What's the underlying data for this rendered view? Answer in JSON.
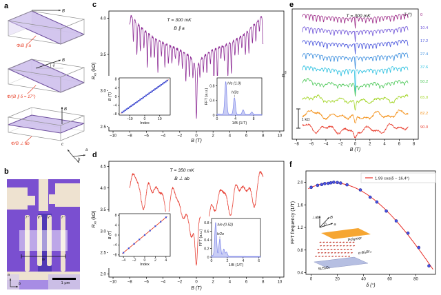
{
  "panels": {
    "a": "a",
    "b": "b",
    "c": "c",
    "d": "d",
    "e": "e",
    "f": "f"
  },
  "panel_a": {
    "label_color": "#e8432b",
    "schematics": [
      {
        "flux_label": "Φ/B ∥ a",
        "field_label": "B",
        "orientation": "parallel-a"
      },
      {
        "flux_label": "Φ/(B ∥ δ = 17°)",
        "field_label": "B",
        "angle_label": "δ",
        "orientation": "tilted-17"
      },
      {
        "flux_label": "Φ/B ⊥ ab",
        "field_label": "B",
        "orientation": "perp-ab"
      }
    ],
    "axes_legend": {
      "up": "c",
      "right": "a",
      "down": "b"
    }
  },
  "panel_b": {
    "type": "device micrograph",
    "electrode_labels": [
      "I⁺",
      "V⁺",
      "V⁻",
      "I⁻"
    ],
    "width_label": "w",
    "scale_label": "1 μm",
    "axes_legend": {
      "up": "a",
      "right": "b"
    },
    "colors": {
      "background": "#7a4fd0",
      "background_light": "#a78ce4",
      "electrode": "#eee2d0",
      "channel": "#342ba4"
    }
  },
  "chart_data": [
    {
      "id": "c",
      "type": "line",
      "annotations": [
        "T = 300 mK",
        "B ∥ a"
      ],
      "xlabel": "B (T)",
      "ylabel_parts": [
        "R",
        "xx",
        " (kΩ)"
      ],
      "xlim": [
        -10.5,
        10.5
      ],
      "ylim": [
        2.44,
        4.1
      ],
      "xticks": [
        -10,
        -8,
        -6,
        -4,
        -2,
        0,
        2,
        4,
        6,
        8,
        10
      ],
      "yticks": [
        2.5,
        3.0,
        3.5,
        4.0
      ],
      "color": "#8e2d96",
      "trace": {
        "range": [
          -8,
          8
        ],
        "base": 3.58,
        "edge": 0.48,
        "pow": 2.6,
        "sag": 0.12,
        "sag_w": 1.8,
        "comb": {
          "period": 0.42,
          "depth": 0.3,
          "width": 0.07
        },
        "dip0": {
          "d": 0.72,
          "w": 0.1,
          "d2": 0.12,
          "w2": 0.5
        },
        "noise": 0.035,
        "seed": 7
      },
      "insets": {
        "index": {
          "xlabel": "Index",
          "ylabel": "B (T)",
          "xlim": [
            -17,
            17
          ],
          "ylim": [
            -8.6,
            8.6
          ],
          "xticks": [
            -10,
            0,
            10
          ],
          "yticks": [
            -8,
            -4,
            0,
            4,
            8
          ],
          "slope": 0.49,
          "index_range": [
            -15,
            15
          ],
          "point_color": "#3d4fd8",
          "line_color": "#e8432b"
        },
        "fft": {
          "xlabel": "1/B (1/T)",
          "ylabel": "FFT (a.u.)",
          "xlim": [
            0,
            9.8
          ],
          "ylim": [
            0,
            1.02
          ],
          "xticks": [
            0,
            4,
            8
          ],
          "yticks": [
            0,
            0.4,
            0.8
          ],
          "peaks": [
            {
              "x": 1.9,
              "h": 0.9,
              "label": "h/e (1.9)"
            },
            {
              "x": 3.8,
              "h": 0.46,
              "label": "h/2e"
            },
            {
              "x": 5.7,
              "h": 0.13
            },
            {
              "x": 7.6,
              "h": 0.07
            }
          ],
          "width": 0.3,
          "fill": "#c9cdf5",
          "line": "#7b84e8"
        }
      }
    },
    {
      "id": "d",
      "type": "line",
      "annotations": [
        "T = 350 mK",
        "B ⊥ ab"
      ],
      "xlabel": "B (T)",
      "ylabel_parts": [
        "R",
        "xx",
        " (kΩ)"
      ],
      "xlim": [
        -10.5,
        10.5
      ],
      "ylim": [
        1.93,
        4.62
      ],
      "xticks": [
        -10,
        -8,
        -6,
        -4,
        -2,
        0,
        2,
        4,
        6,
        8,
        10
      ],
      "yticks": [
        2.0,
        2.5,
        3.0,
        3.5,
        4.0,
        4.5
      ],
      "color": "#e8453a",
      "trace": {
        "range": [
          -8,
          8
        ],
        "base": 3.74,
        "edge": 0.33,
        "pow": 2,
        "sag": 0.5,
        "sag_w": 2.2,
        "slow": [
          [
            0.21,
            2.6,
            1.1
          ],
          [
            0.16,
            1.5,
            0.5
          ],
          [
            0.1,
            0.95,
            2.4
          ]
        ],
        "dip0": {
          "d": 1.15,
          "w": 0.22,
          "d2": 0.2,
          "w2": 0.7
        },
        "noise": 0.05,
        "seed": 21
      },
      "insets": {
        "index": {
          "xlabel": "Index",
          "ylabel": "B (T)",
          "xlim": [
            -4.8,
            4.8
          ],
          "ylim": [
            -8.6,
            8.6
          ],
          "xticks": [
            -4,
            -2,
            0,
            2,
            4
          ],
          "yticks": [
            -8,
            -4,
            0,
            4,
            8
          ],
          "slope": 1.78,
          "index_range": [
            -4,
            4
          ],
          "point_color": "#3d4fd8",
          "line_color": "#e8432b"
        },
        "fft": {
          "xlabel": "1/B (1/T)",
          "ylabel": "FFT (a.u.)",
          "xlim": [
            0,
            6.2
          ],
          "ylim": [
            0,
            0.9
          ],
          "xticks": [
            0,
            2,
            4,
            6
          ],
          "yticks": [
            0,
            0.2,
            0.4,
            0.6,
            0.8
          ],
          "peaks": [
            {
              "x": 0.52,
              "h": 0.78,
              "label": "h/e (0.52)"
            },
            {
              "x": 1.05,
              "h": 0.4,
              "label": "h/2e"
            },
            {
              "x": 1.55,
              "h": 0.17
            },
            {
              "x": 1.9,
              "h": 0.1
            }
          ],
          "width": 0.16,
          "fill": "#c9cdf5",
          "line": "#7b84e8"
        }
      }
    },
    {
      "id": "e",
      "type": "line-stack",
      "annotation": "T = 300 mK",
      "series_header": "δ (°)",
      "xlabel": "B (T)",
      "ylabel_parts": [
        "R",
        "xx",
        ""
      ],
      "xlim": [
        -8.6,
        8.6
      ],
      "xticks": [
        -8,
        -6,
        -4,
        -2,
        0,
        2,
        4,
        6,
        8
      ],
      "scale_bar_label": "1 kΩ",
      "series": [
        {
          "delta": "0",
          "color": "#9b2585",
          "jag": 1.0,
          "slow": 0.12,
          "zdip": 16,
          "zw": 0.06,
          "seed": 31
        },
        {
          "delta": "10.4",
          "color": "#6f54d8",
          "jag": 0.95,
          "slow": 0.15,
          "zdip": 15,
          "zw": 0.06,
          "seed": 32
        },
        {
          "delta": "17.2",
          "color": "#4652dc",
          "jag": 0.9,
          "slow": 0.18,
          "zdip": 15,
          "zw": 0.06,
          "seed": 33
        },
        {
          "delta": "27.4",
          "color": "#3a8dde",
          "jag": 0.85,
          "slow": 0.22,
          "zdip": 18,
          "zw": 0.06,
          "seed": 34
        },
        {
          "delta": "37.6",
          "color": "#2bc0e0",
          "jag": 0.8,
          "slow": 0.28,
          "zdip": 34,
          "zw": 0.06,
          "seed": 35
        },
        {
          "delta": "50.2",
          "color": "#53ca5e",
          "jag": 0.5,
          "slow": 0.5,
          "zdip": 16,
          "zw": 0.09,
          "seed": 36
        },
        {
          "delta": "65.0",
          "color": "#a5d62b",
          "jag": 0.3,
          "slow": 0.7,
          "zdip": 15,
          "zw": 0.12,
          "seed": 37
        },
        {
          "delta": "82.2",
          "color": "#f4921b",
          "jag": 0.12,
          "slow": 0.9,
          "zdip": 14,
          "zw": 0.2,
          "seed": 38
        },
        {
          "delta": "90.0",
          "color": "#e94334",
          "jag": 0.05,
          "slow": 1.0,
          "zdip": 12,
          "zw": 0.28,
          "seed": 39
        }
      ]
    },
    {
      "id": "f",
      "type": "scatter",
      "legend": "1.99 cos(δ − 16.4°)",
      "fit": {
        "amplitude": 1.99,
        "phase_deg": 16.4
      },
      "xlabel": "δ (°)",
      "ylabel": "FFT frequency (1/T)",
      "xlim": [
        -4,
        95
      ],
      "ylim": [
        0.37,
        2.2
      ],
      "xticks": [
        0,
        20,
        40,
        60,
        80
      ],
      "yticks": [
        0.4,
        0.8,
        1.2,
        1.6,
        2.0
      ],
      "point_color": "#4853e4",
      "point_edge": "#22228c",
      "line_color": "#e82e28",
      "points": [
        [
          0,
          1.91
        ],
        [
          4.9,
          1.945
        ],
        [
          8,
          1.96
        ],
        [
          10.4,
          1.975
        ],
        [
          13,
          1.98
        ],
        [
          15,
          1.99
        ],
        [
          17.2,
          2.0
        ],
        [
          20,
          1.995
        ],
        [
          22.5,
          1.985
        ],
        [
          27.4,
          1.955
        ],
        [
          37.6,
          1.865
        ],
        [
          45.1,
          1.735
        ],
        [
          50.2,
          1.65
        ],
        [
          57.4,
          1.49
        ],
        [
          65,
          1.315
        ],
        [
          74,
          1.1
        ],
        [
          82.2,
          0.845
        ],
        [
          90,
          0.52
        ]
      ],
      "inset": {
        "labels": {
          "perp": "⊥ab",
          "field": "B",
          "angle": "δ",
          "a_axis": "a",
          "top": "Polymer",
          "crystal": "α-Bi₄Br₄",
          "substrate": "Si/SiO₂"
        }
      }
    }
  ]
}
